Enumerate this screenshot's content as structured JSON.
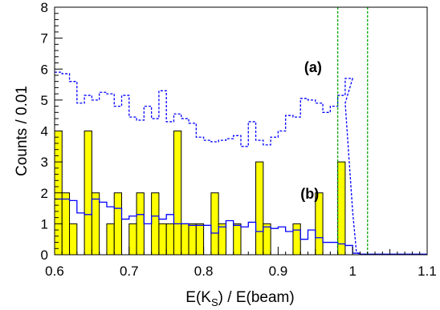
{
  "chart_data": {
    "type": "bar",
    "xlabel": "E(K",
    "xlabel_sub": "S",
    "xlabel_tail": ") / E(beam)",
    "ylabel": "Counts / 0.01",
    "xlim": [
      0.6,
      1.1
    ],
    "ylim": [
      0,
      8
    ],
    "bin_width": 0.01,
    "x_ticks": [
      "0.6",
      "0.7",
      "0.8",
      "0.9",
      "1",
      "1.1"
    ],
    "y_ticks": [
      "0",
      "1",
      "2",
      "3",
      "4",
      "5",
      "6",
      "7",
      "8"
    ],
    "labels": {
      "a": "(a)",
      "b": "(b)"
    },
    "vertical_lines": [
      0.98,
      1.02
    ],
    "colors": {
      "histogram_fill": "#ffff00",
      "dashed_curve": "#0000ff",
      "solid_curve": "#0000ff",
      "cut_lines": "#00aa00"
    },
    "bin_edges_start": 0.6,
    "data_histogram": [
      4,
      2,
      1,
      0,
      4,
      2,
      0,
      1,
      2,
      0,
      1,
      2,
      0,
      2,
      1,
      1,
      4,
      1,
      1,
      1,
      0,
      2,
      1,
      0,
      1,
      0,
      0,
      3,
      1,
      0,
      0,
      0,
      1,
      0,
      0,
      2,
      0,
      0,
      3,
      0
    ],
    "curve_a": [
      5.9,
      5.85,
      5.6,
      4.9,
      5.15,
      5.0,
      5.25,
      5.2,
      4.8,
      5.15,
      4.45,
      4.35,
      4.8,
      4.4,
      5.3,
      4.3,
      4.55,
      4.4,
      4.25,
      3.8,
      3.7,
      3.65,
      3.7,
      3.75,
      3.85,
      3.5,
      4.3,
      3.7,
      3.55,
      3.8,
      4.0,
      4.5,
      4.45,
      5.05,
      5.0,
      4.9,
      4.6,
      4.8,
      5.15,
      5.7
    ],
    "curve_a_tail": [
      {
        "x": 0.99,
        "y": 4.9
      },
      {
        "x": 1.0,
        "y": 1.4
      },
      {
        "x": 1.005,
        "y": 0.1
      },
      {
        "x": 1.01,
        "y": 0
      }
    ],
    "curve_b": [
      1.8,
      1.8,
      1.75,
      1.35,
      1.3,
      1.8,
      1.7,
      1.55,
      1.5,
      1.15,
      1.25,
      1.3,
      1.0,
      1.25,
      1.15,
      1.3,
      1.0,
      1.0,
      0.95,
      0.95,
      0.95,
      0.7,
      0.9,
      1.1,
      0.95,
      0.9,
      1.05,
      0.75,
      0.9,
      0.85,
      0.9,
      0.75,
      0.8,
      0.5,
      0.8,
      0.55,
      0.4,
      0.4,
      0.35,
      0.3,
      0.05,
      0.02,
      0.02,
      0.02,
      0.02,
      0.02,
      0.02,
      0.02,
      0.02,
      0.02
    ]
  }
}
